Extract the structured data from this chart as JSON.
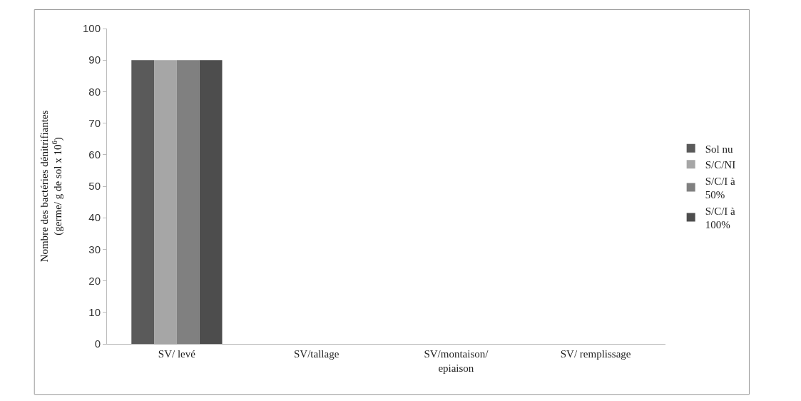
{
  "chart_data": {
    "type": "bar",
    "ylabel": "Nombre des bactéries dénitrifiantes (germe/ g de sol x 10$^{6}$)",
    "categories": [
      "SV/ levé",
      "SV/tallage",
      "SV/montaison/ epiaison",
      "SV/ remplissage"
    ],
    "series": [
      {
        "name": "Sol nu",
        "color": "#5a5a5a",
        "values": [
          90,
          null,
          null,
          null
        ]
      },
      {
        "name": "S/C/NI",
        "color": "#a6a6a6",
        "values": [
          90,
          null,
          null,
          null
        ]
      },
      {
        "name": "S/C/I à 50%",
        "color": "#808080",
        "values": [
          90,
          null,
          null,
          null
        ]
      },
      {
        "name": "S/C/I à 100%",
        "color": "#4d4d4d",
        "values": [
          90,
          null,
          null,
          null
        ]
      }
    ],
    "ylim": [
      0,
      100
    ],
    "yticks": [
      0,
      10,
      20,
      30,
      40,
      50,
      60,
      70,
      80,
      90,
      100
    ],
    "legend": "right"
  }
}
